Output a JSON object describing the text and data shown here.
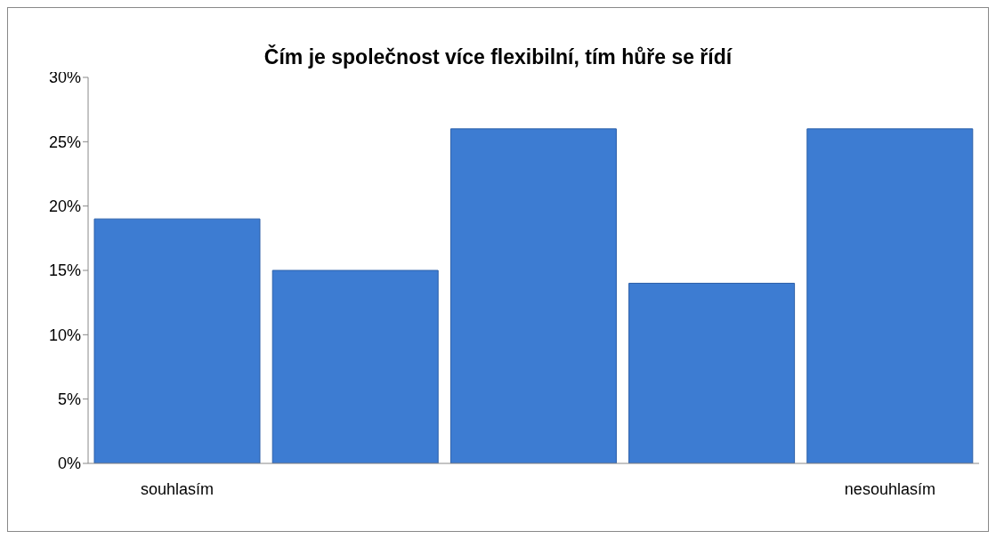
{
  "chart_data": {
    "type": "bar",
    "title": "Čím je společnost více flexibilní, tím hůře se řídí",
    "categories": [
      "souhlasím",
      null,
      null,
      null,
      "nesouhlasím"
    ],
    "values": [
      19,
      15,
      26,
      14,
      26
    ],
    "color": "#3d7cd2",
    "ylim": [
      0,
      30
    ],
    "yticks": [
      {
        "value": 0,
        "label": "0%"
      },
      {
        "value": 5,
        "label": "5%"
      },
      {
        "value": 10,
        "label": "10%"
      },
      {
        "value": 15,
        "label": "15%"
      },
      {
        "value": 20,
        "label": "20%"
      },
      {
        "value": 25,
        "label": "25%"
      },
      {
        "value": 30,
        "label": "30%"
      }
    ],
    "grid": false,
    "legend": false
  }
}
